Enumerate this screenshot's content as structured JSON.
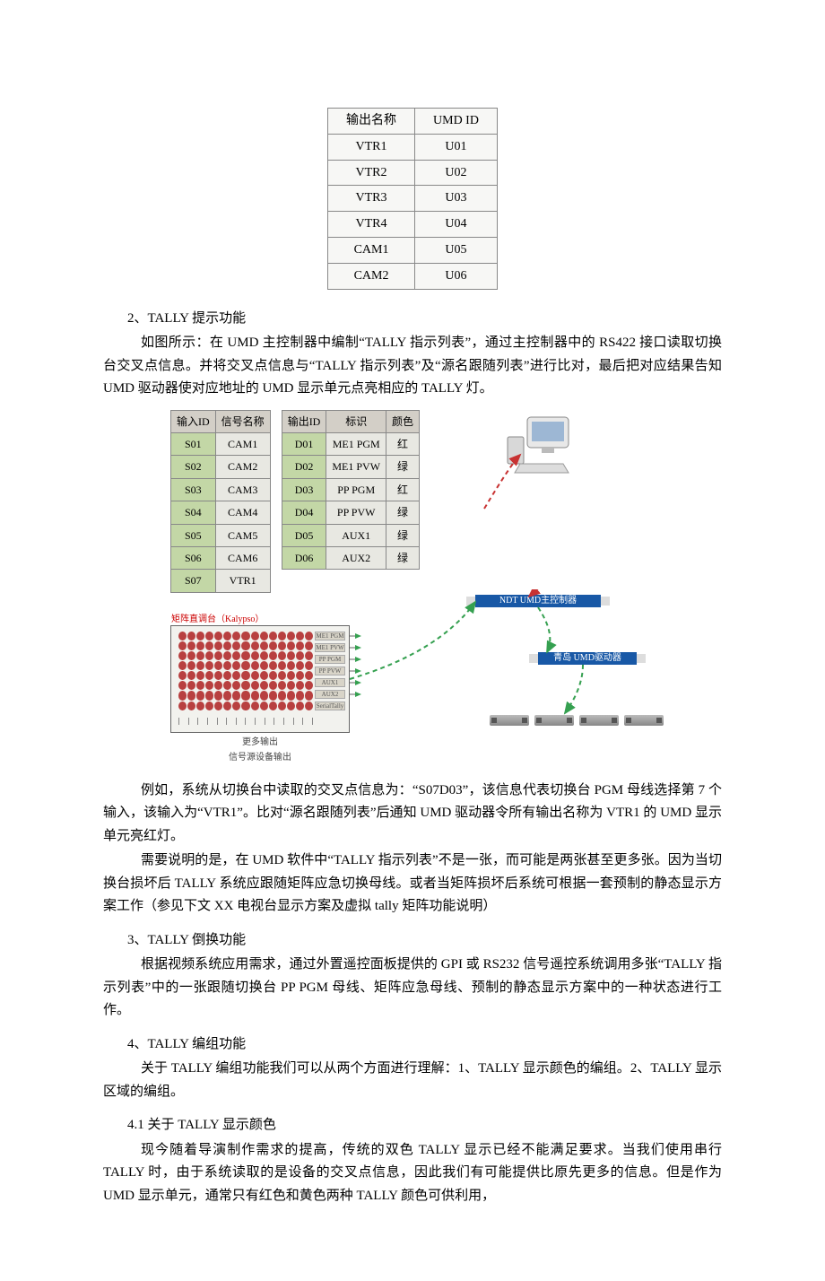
{
  "table1": {
    "headers": [
      "输出名称",
      "UMD ID"
    ],
    "rows": [
      [
        "VTR1",
        "U01"
      ],
      [
        "VTR2",
        "U02"
      ],
      [
        "VTR3",
        "U03"
      ],
      [
        "VTR4",
        "U04"
      ],
      [
        "CAM1",
        "U05"
      ],
      [
        "CAM2",
        "U06"
      ]
    ]
  },
  "sec2": {
    "title": "2、TALLY 提示功能",
    "p1": "如图所示：在 UMD 主控制器中编制“TALLY 指示列表”，通过主控制器中的 RS422 接口读取切换台交叉点信息。并将交叉点信息与“TALLY 指示列表”及“源名跟随列表”进行比对，最后把对应结果告知 UMD 驱动器使对应地址的 UMD 显示单元点亮相应的 TALLY 灯。"
  },
  "diag": {
    "left_headers": [
      "输入ID",
      "信号名称"
    ],
    "left_rows": [
      [
        "S01",
        "CAM1"
      ],
      [
        "S02",
        "CAM2"
      ],
      [
        "S03",
        "CAM3"
      ],
      [
        "S04",
        "CAM4"
      ],
      [
        "S05",
        "CAM5"
      ],
      [
        "S06",
        "CAM6"
      ],
      [
        "S07",
        "VTR1"
      ]
    ],
    "right_headers": [
      "输出ID",
      "标识",
      "颜色"
    ],
    "right_rows": [
      [
        "D01",
        "ME1 PGM",
        "红"
      ],
      [
        "D02",
        "ME1 PVW",
        "绿"
      ],
      [
        "D03",
        "PP PGM",
        "红"
      ],
      [
        "D04",
        "PP PVW",
        "绿"
      ],
      [
        "D05",
        "AUX1",
        "绿"
      ],
      [
        "D06",
        "AUX2",
        "绿"
      ]
    ],
    "matrix_label_top": "矩阵直调台（Kalypso）",
    "matrix_side_labels": [
      "ME1 PGM",
      "ME1 PVW",
      "PP PGM",
      "PP PVW",
      "AUX1",
      "AUX2",
      "SerialTally"
    ],
    "matrix_caption_1": "更多输出",
    "matrix_caption_2": "信号源设备输出",
    "ndt_label": "NDT UMD主控制器",
    "drv_label": "青岛 UMD驱动器",
    "colors": {
      "header_bg": "#d3cfc7",
      "cell_bg": "#e8e8e2",
      "hl_bg": "#c3d7a6",
      "box_bg": "#1858a6",
      "dot_color": "#b84040",
      "arrow_red": "#c83232",
      "arrow_green": "#35a050"
    }
  },
  "sec2b": {
    "p1": "例如，系统从切换台中读取的交叉点信息为：“S07D03”，该信息代表切换台 PGM 母线选择第 7 个输入，该输入为“VTR1”。比对“源名跟随列表”后通知 UMD 驱动器令所有输出名称为 VTR1 的 UMD 显示单元亮红灯。",
    "p2": "需要说明的是，在 UMD 软件中“TALLY 指示列表”不是一张，而可能是两张甚至更多张。因为当切换台损坏后 TALLY 系统应跟随矩阵应急切换母线。或者当矩阵损坏后系统可根据一套预制的静态显示方案工作（参见下文 XX 电视台显示方案及虚拟 tally 矩阵功能说明）"
  },
  "sec3": {
    "title": "3、TALLY 倒换功能",
    "p1": "根据视频系统应用需求，通过外置遥控面板提供的 GPI 或 RS232 信号遥控系统调用多张“TALLY 指示列表”中的一张跟随切换台 PP PGM 母线、矩阵应急母线、预制的静态显示方案中的一种状态进行工作。"
  },
  "sec4": {
    "title": "4、TALLY 编组功能",
    "p1": "关于 TALLY 编组功能我们可以从两个方面进行理解：1、TALLY 显示颜色的编组。2、TALLY 显示区域的编组。"
  },
  "sec41": {
    "title": "4.1 关于 TALLY 显示颜色",
    "p1": "现今随着导演制作需求的提高，传统的双色 TALLY 显示已经不能满足要求。当我们使用串行 TALLY 时，由于系统读取的是设备的交叉点信息，因此我们有可能提供比原先更多的信息。但是作为 UMD 显示单元，通常只有红色和黄色两种 TALLY 颜色可供利用，"
  }
}
